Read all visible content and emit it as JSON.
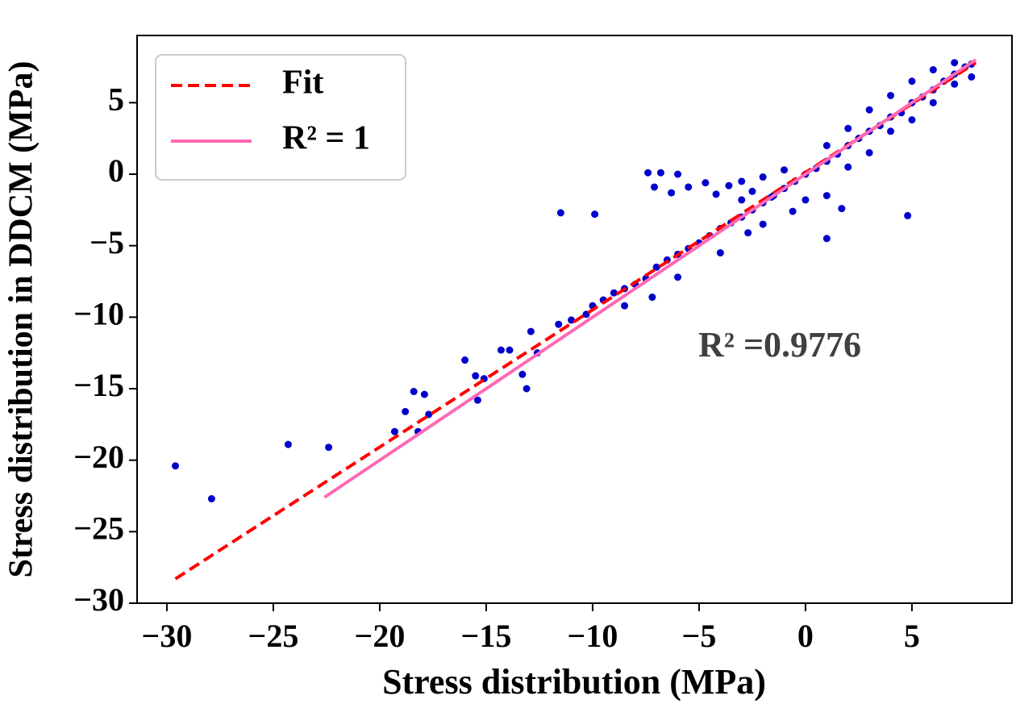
{
  "chart_data": {
    "type": "scatter",
    "xlabel": "Stress distribution (MPa)",
    "ylabel": "Stress distribution in DDCM (MPa)",
    "annotation": "R² =0.9776",
    "xlim": [
      -31.4,
      9.7
    ],
    "ylim": [
      -30,
      9.7
    ],
    "xticks": [
      {
        "value": -30,
        "label": "−30"
      },
      {
        "value": -25,
        "label": "−25"
      },
      {
        "value": -20,
        "label": "−20"
      },
      {
        "value": -15,
        "label": "−15"
      },
      {
        "value": -10,
        "label": "−10"
      },
      {
        "value": -5,
        "label": "−5"
      },
      0,
      5
    ],
    "yticks": [
      {
        "value": -30,
        "label": "−30"
      },
      {
        "value": -25,
        "label": "−25"
      },
      {
        "value": -20,
        "label": "−20"
      },
      {
        "value": -15,
        "label": "−15"
      },
      {
        "value": -10,
        "label": "−10"
      },
      {
        "value": -5,
        "label": "−5"
      },
      0,
      5
    ],
    "legend": "upper left",
    "series": [
      {
        "type": "scatter",
        "color": "#0000cc",
        "x": [
          -29.6,
          -27.9,
          -24.3,
          -22.4,
          -19.3,
          -18.8,
          -18.4,
          -17.9,
          -18.2,
          -17.7,
          -16.0,
          -15.5,
          -15.4,
          -15.1,
          -14.3,
          -13.9,
          -13.3,
          -13.1,
          -12.9,
          -12.6,
          -11.6,
          -11.5,
          -9.9,
          -11.0,
          -10.3,
          -10.0,
          -9.5,
          -9.0,
          -8.5,
          -8.0,
          -7.5,
          -7.0,
          -6.5,
          -6.0,
          -5.5,
          -5.0,
          -4.5,
          -4.0,
          -3.5,
          -3.0,
          -2.5,
          -2.0,
          -1.5,
          -1.0,
          -0.5,
          0,
          0.5,
          1,
          1.5,
          2,
          2.5,
          3,
          3.5,
          4,
          4.5,
          5,
          5.5,
          6,
          6.5,
          7,
          7.5,
          7.8,
          -8.5,
          -7.2,
          -6.0,
          -4.0,
          -2.0,
          0,
          1,
          2,
          3,
          4,
          5,
          6,
          7,
          7.8,
          -3,
          -1,
          1,
          2,
          3,
          4,
          5,
          6,
          7,
          -7.4,
          -6.8,
          -6.0,
          -7.1,
          -6.3,
          -5.5,
          -4.7,
          -4.2,
          -3.6,
          -3.0,
          -2.5,
          -2.0,
          -1.6,
          1,
          4.8,
          1.7,
          -2.7,
          -0.6
        ],
        "values": [
          -20.4,
          -22.7,
          -18.9,
          -19.1,
          -18.0,
          -16.6,
          -15.2,
          -15.4,
          -18.0,
          -16.8,
          -13.0,
          -14.1,
          -15.8,
          -14.3,
          -12.3,
          -12.3,
          -14.0,
          -15.0,
          -11.0,
          -12.5,
          -10.5,
          -2.7,
          -2.8,
          -10.2,
          -9.8,
          -9.2,
          -8.8,
          -8.3,
          -8.0,
          -7.7,
          -7.3,
          -6.5,
          -6.0,
          -5.6,
          -5.2,
          -4.8,
          -4.3,
          -3.8,
          -3.4,
          -3.0,
          -2.5,
          -2.0,
          -1.5,
          -1.0,
          -0.5,
          0,
          0.4,
          0.9,
          1.4,
          2.0,
          2.5,
          3.0,
          3.4,
          4.0,
          4.3,
          5.0,
          5.4,
          5.9,
          6.5,
          7.0,
          7.5,
          7.7,
          -9.2,
          -8.6,
          -7.2,
          -5.5,
          -3.5,
          -1.8,
          -1.5,
          0.5,
          1.5,
          3,
          3.8,
          5,
          6.3,
          6.8,
          -1.8,
          0.3,
          2,
          3.2,
          4.5,
          5.5,
          6.5,
          7.3,
          7.8,
          0.1,
          0.1,
          0.0,
          -0.9,
          -1.3,
          -0.9,
          -0.6,
          -1.4,
          -0.8,
          -0.5,
          -1.2,
          -0.2,
          -1.6,
          -4.5,
          -2.9,
          -2.4,
          -4.1,
          -2.6
        ]
      },
      {
        "type": "line",
        "name": "Fit",
        "color": "#ff0000",
        "dashed": true,
        "x": [
          -29.6,
          8
        ],
        "values": [
          -28.3,
          7.8
        ]
      },
      {
        "type": "line",
        "name": "R² = 1",
        "color": "#ff69b4",
        "dashed": false,
        "x": [
          -22.6,
          8
        ],
        "values": [
          -22.6,
          8
        ]
      }
    ]
  }
}
